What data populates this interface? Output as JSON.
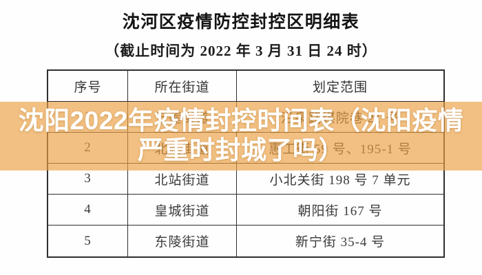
{
  "doc": {
    "title": "沈河区疫情防控封控区明细表",
    "subtitle": "（截止时间为 2022 年 3 月 31 日 24 时）",
    "table": {
      "headers": [
        "序号",
        "所在街道",
        "划定范围"
      ],
      "rows": [
        {
          "no": "1",
          "street": "万莲街道",
          "range": "沿泉路煤院巷 21 号"
        },
        {
          "no": "2",
          "street": "北站街道",
          "range": "惠工街 59 号、195-1 号"
        },
        {
          "no": "3",
          "street": "北站街道",
          "range": "小北关街 198 号 7 单元"
        },
        {
          "no": "4",
          "street": "皇城街道",
          "range": "朝阳街 167 号"
        },
        {
          "no": "5",
          "street": "东陵街道",
          "range": "新宁街 35-4 号"
        }
      ]
    }
  },
  "overlay": {
    "full_text": "沈阳2022年疫情封控时间表（沈阳疫情严重时封城了吗）",
    "lines": [
      "沈阳2022年疫情封控时间表（沈阳疫情",
      "严重时封城了吗）"
    ],
    "band_color_rgba": "rgba(235,160,65,0.66)",
    "text_color": "#ffffff"
  },
  "colors": {
    "page_background": "#fefefe",
    "table_border": "#2e2e2e",
    "table_text": "#3b3b3b",
    "title_text": "#141414"
  }
}
